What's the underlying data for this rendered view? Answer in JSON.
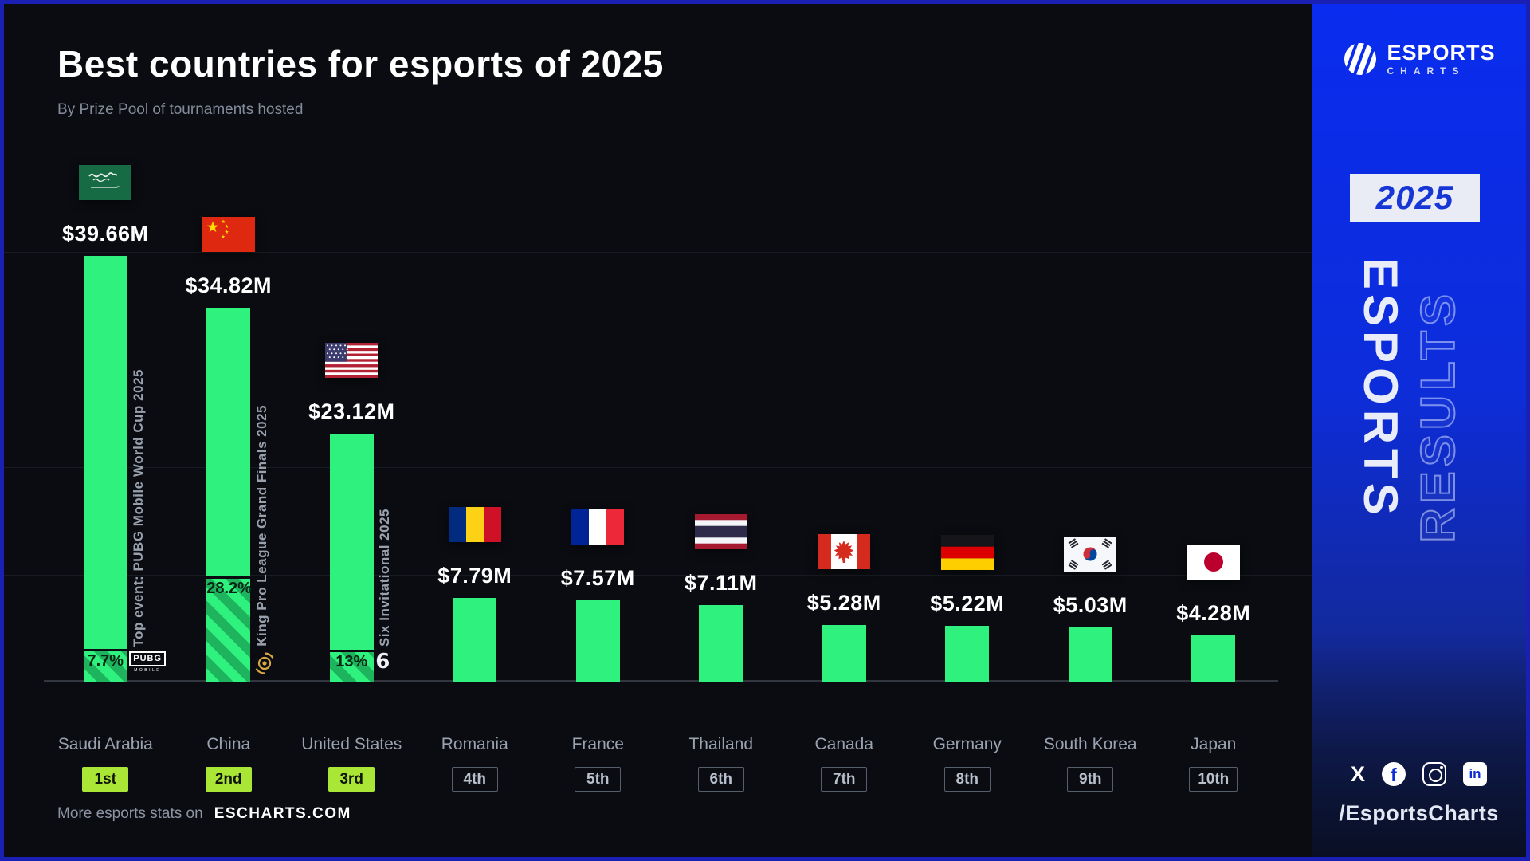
{
  "header": {
    "title": "Best countries for esports of 2025",
    "subtitle": "By Prize Pool of tournaments hosted"
  },
  "chart_data": {
    "type": "bar",
    "title": "Best countries for esports of 2025",
    "subtitle": "By Prize Pool of tournaments hosted",
    "unit": "USD millions",
    "ylim": [
      0,
      40
    ],
    "gridlines_m": [
      10,
      20,
      30,
      40
    ],
    "legend": "none",
    "categories": [
      "Saudi Arabia",
      "China",
      "United States",
      "Romania",
      "France",
      "Thailand",
      "Canada",
      "Germany",
      "South Korea",
      "Japan"
    ],
    "values": [
      39.66,
      34.82,
      23.12,
      7.79,
      7.57,
      7.11,
      5.28,
      5.22,
      5.03,
      4.28
    ],
    "value_labels": [
      "$39.66M",
      "$34.82M",
      "$23.12M",
      "$7.79M",
      "$7.57M",
      "$7.11M",
      "$5.28M",
      "$5.22M",
      "$5.03M",
      "$4.28M"
    ],
    "ranks": [
      "1st",
      "2nd",
      "3rd",
      "4th",
      "5th",
      "6th",
      "7th",
      "8th",
      "9th",
      "10th"
    ],
    "top_ranks_highlighted": 3,
    "top_events": [
      {
        "country": "Saudi Arabia",
        "label": "Top event: PUBG Mobile World Cup 2025",
        "share_label": "7.7%",
        "share_pct": 7.7,
        "icon": "pubg-mobile-logo"
      },
      {
        "country": "China",
        "label": "King Pro League Grand Finals 2025",
        "share_label": "28.2%",
        "share_pct": 28.2,
        "icon": "king-pro-league-logo"
      },
      {
        "country": "United States",
        "label": "Six Invitational 2025",
        "share_label": "13%",
        "share_pct": 13,
        "icon": "six-invitational-logo"
      }
    ],
    "colors": {
      "bar": "#2ff17d",
      "bar_hatch_dark": "#1db45d",
      "rank_badge_top": "#a9e636",
      "background": "#0a0c11",
      "sidebar_blue": "#0d2dda",
      "frame_border": "#1a20b4"
    }
  },
  "footer": {
    "prefix": "More esports stats on",
    "site": "ESCHARTS.COM"
  },
  "sidebar": {
    "logo": {
      "line1": "ESPORTS",
      "line2": "CHARTS"
    },
    "year_badge": "2025",
    "vertical_text_solid": "ESPORTS",
    "vertical_text_outline": "RESULTS",
    "social_icons": [
      "x-icon",
      "facebook-icon",
      "instagram-icon",
      "linkedin-icon"
    ],
    "handle": "/EsportsCharts"
  }
}
